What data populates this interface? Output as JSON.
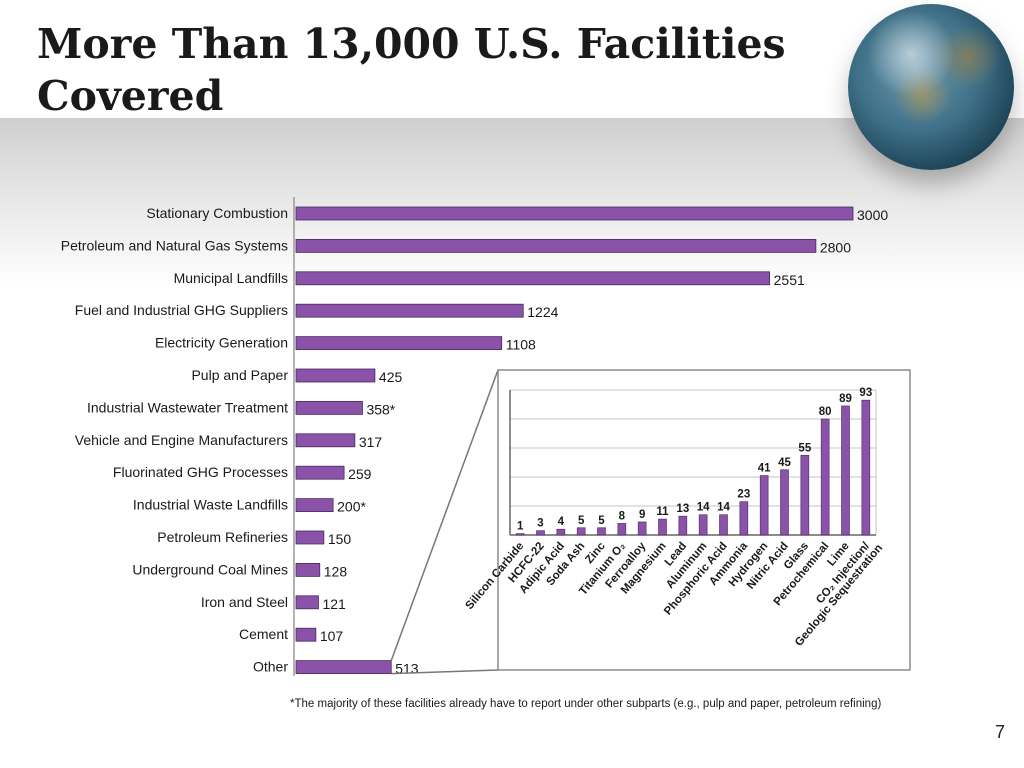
{
  "slide": {
    "title": "More Than 13,000 U.S. Facilities Covered",
    "page_number": "7"
  },
  "colors": {
    "bar": "#8a52a8",
    "bar_stroke": "#4a2a5e",
    "axis": "#9a9a9a"
  },
  "chart_data": [
    {
      "type": "bar",
      "orientation": "horizontal",
      "categories": [
        "Stationary Combustion",
        "Petroleum and Natural Gas Systems",
        "Municipal Landfills",
        "Fuel and Industrial GHG Suppliers",
        "Electricity Generation",
        "Pulp and Paper",
        "Industrial Wastewater Treatment",
        "Vehicle  and Engine Manufacturers",
        "Fluorinated GHG Processes",
        "Industrial Waste Landfills",
        "Petroleum Refineries",
        "Underground Coal Mines",
        "Iron and Steel",
        "Cement",
        "Other"
      ],
      "values": [
        3000,
        2800,
        2551,
        1224,
        1108,
        425,
        358,
        317,
        259,
        200,
        150,
        128,
        121,
        107,
        513
      ],
      "value_labels": [
        "3000",
        "2800",
        "2551",
        "1224",
        "1108",
        "425",
        "358*",
        "317",
        "259",
        "200*",
        "150",
        "128",
        "121",
        "107",
        "513"
      ],
      "xlim": [
        0,
        3000
      ]
    },
    {
      "type": "bar",
      "orientation": "vertical",
      "categories": [
        "Silicon Carbide",
        "HCFC-22",
        "Adipic Acid",
        "Soda Ash",
        "Zinc",
        "Titanium O₂",
        "Ferroalloy",
        "Magnesium",
        "Lead",
        "Aluminum",
        "Phosphoric Acid",
        "Ammonia",
        "Hydrogen",
        "Nitric Acid",
        "Glass",
        "Petrochemical",
        "Lime",
        "CO₂ Injection/ Geologic Sequestration"
      ],
      "values": [
        1,
        3,
        4,
        5,
        5,
        8,
        9,
        11,
        13,
        14,
        14,
        23,
        41,
        45,
        55,
        80,
        89,
        93
      ],
      "ylim": [
        0,
        100
      ],
      "grid": true
    }
  ],
  "footnote": "*The majority of these facilities already have to report under other subparts (e.g., pulp and paper, petroleum refining)"
}
